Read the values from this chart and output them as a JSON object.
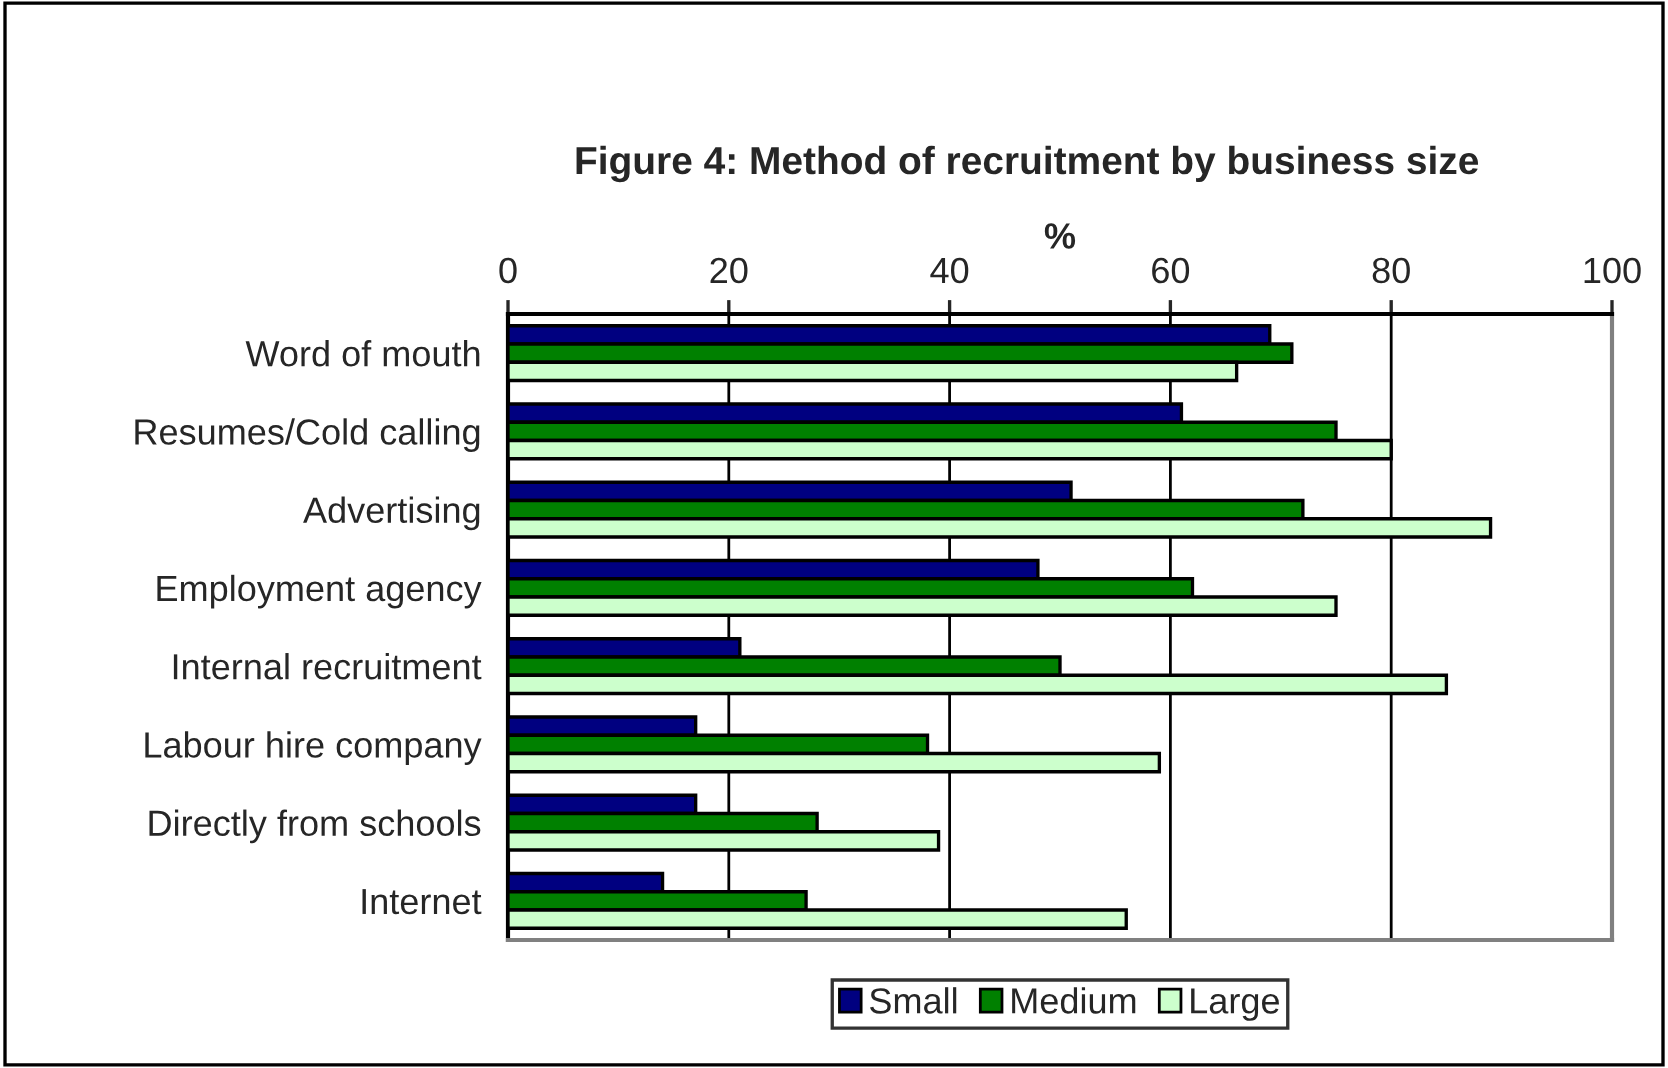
{
  "chart_data": {
    "type": "bar",
    "orientation": "horizontal",
    "title": "Figure 4: Method of recruitment by business size",
    "xlabel": "%",
    "categories": [
      "Word of mouth",
      "Resumes/Cold calling",
      "Advertising",
      "Employment agency",
      "Internal recruitment",
      "Labour hire company",
      "Directly from schools",
      "Internet"
    ],
    "series": [
      {
        "name": "Small",
        "color": "#000080",
        "values": [
          69,
          61,
          51,
          48,
          21,
          17,
          17,
          14
        ]
      },
      {
        "name": "Medium",
        "color": "#008000",
        "values": [
          71,
          75,
          72,
          62,
          50,
          38,
          28,
          27
        ]
      },
      {
        "name": "Large",
        "color": "#ccffcc",
        "values": [
          66,
          80,
          89,
          75,
          85,
          59,
          39,
          56
        ]
      }
    ],
    "xlim": [
      0,
      100
    ],
    "xticks": [
      0,
      20,
      40,
      60,
      80,
      100
    ],
    "grid": "x",
    "legend": "bottom"
  }
}
